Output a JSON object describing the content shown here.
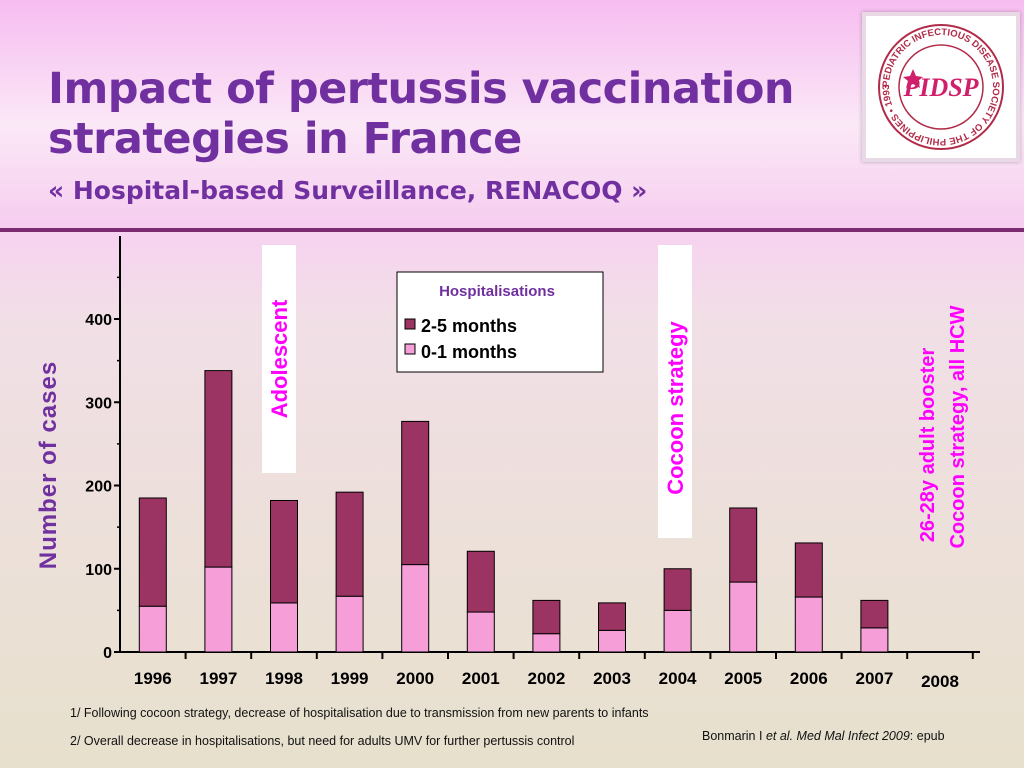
{
  "title": {
    "line1": "Impact of pertussis vaccination",
    "line2": "strategies in France",
    "subtitle": "« Hospital-based Surveillance, RENACOQ »"
  },
  "logo": {
    "text": "PIDSP",
    "ring_text": "PEDIATRIC INFECTIOUS DISEASE SOCIETY OF THE PHILIPPINES • 1993 •"
  },
  "chart_data": {
    "type": "bar",
    "stacked": true,
    "categories": [
      "1996",
      "1997",
      "1998",
      "1999",
      "2000",
      "2001",
      "2002",
      "2003",
      "2004",
      "2005",
      "2006",
      "2007",
      "2008"
    ],
    "series": [
      {
        "name": "0-1 months",
        "color": "#f59ed8",
        "values": [
          55,
          102,
          59,
          67,
          105,
          48,
          22,
          26,
          50,
          84,
          66,
          29,
          null
        ]
      },
      {
        "name": "2-5 months",
        "color": "#9b3462",
        "values": [
          130,
          236,
          123,
          125,
          172,
          73,
          40,
          33,
          50,
          89,
          65,
          33,
          null
        ]
      }
    ],
    "ylabel": "Number of cases",
    "yticks": [
      0,
      100,
      200,
      300,
      400
    ],
    "ylim": [
      0,
      500
    ],
    "legend": {
      "title": "Hospitalisations",
      "position": "top-center"
    },
    "annotations": [
      {
        "text": "Adolescent",
        "year": "1998"
      },
      {
        "text": "Cocoon strategy",
        "year": "2004"
      },
      {
        "lines": [
          "26-28y adult booster",
          "Cocoon strategy, all HCW"
        ],
        "year": "2008"
      }
    ],
    "grid": false
  },
  "notes": [
    "1/ Following cocoon strategy, decrease of hospitalisation due to transmission from new parents to infants",
    "2/ Overall decrease in hospitalisations, but need for adults UMV for further pertussis control"
  ],
  "citation": {
    "authors": "Bonmarin I",
    "etal": "et al.",
    "journal": "Med Mal Infect 2009",
    "suffix": ": epub"
  },
  "colors": {
    "title": "#7030a0",
    "annotation": "#ff00ff",
    "axis_label": "#7030a0",
    "divider": "#7a2a70"
  }
}
